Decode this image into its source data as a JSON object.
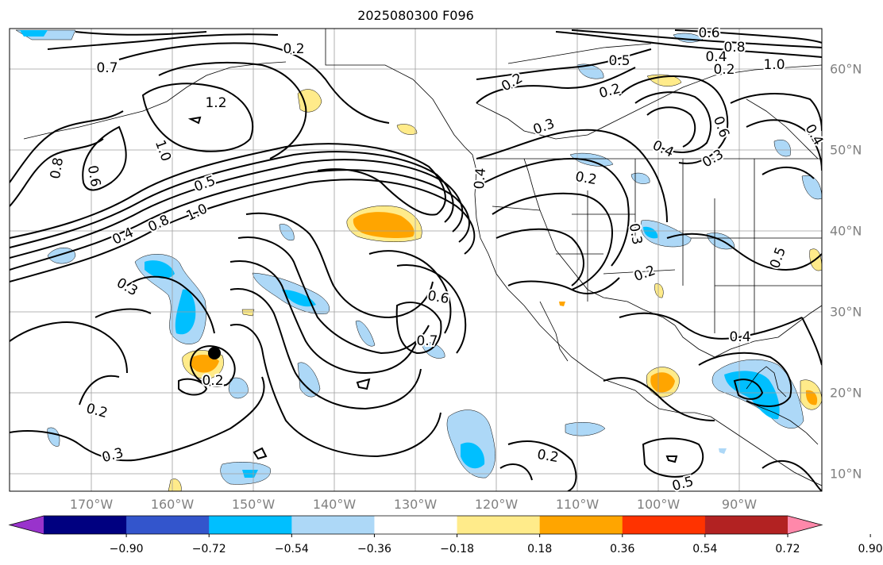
{
  "title": "2025080300 F096",
  "map": {
    "longitude_labels": [
      "170°W",
      "160°W",
      "150°W",
      "140°W",
      "130°W",
      "120°W",
      "110°W",
      "100°W",
      "90°W"
    ],
    "latitude_labels": [
      "60°N",
      "50°N",
      "40°N",
      "30°N",
      "20°N",
      "10°N"
    ],
    "contour_labels": [
      "0.2",
      "0.7",
      "1.2",
      "1.0",
      "0.8",
      "0.6",
      "0.5",
      "0.4",
      "0.8",
      "1.0",
      "0.3",
      "0.2",
      "0.3",
      "0.2",
      "0.6",
      "0.7",
      "0.4",
      "0.2",
      "0.2",
      "0.3",
      "0.5",
      "0.6",
      "0.4",
      "0.8",
      "1.0",
      "0.2",
      "0.4",
      "0.3",
      "0.2",
      "0.2",
      "0.3",
      "0.4",
      "0.2",
      "0.5",
      "0.6",
      "0.4",
      "0.5"
    ],
    "marker": "black-dot"
  },
  "colorbar": {
    "tick_labels": [
      "−0.90",
      "−0.72",
      "−0.54",
      "−0.36",
      "−0.18",
      "0.18",
      "0.36",
      "0.54",
      "0.72",
      "0.90"
    ],
    "colors": [
      "#9933cc",
      "#000080",
      "#3355cc",
      "#00bfff",
      "#add8f7",
      "#ffffff",
      "#ffeb8a",
      "#ffa500",
      "#ff3300",
      "#b22222",
      "#ff88aa"
    ]
  }
}
